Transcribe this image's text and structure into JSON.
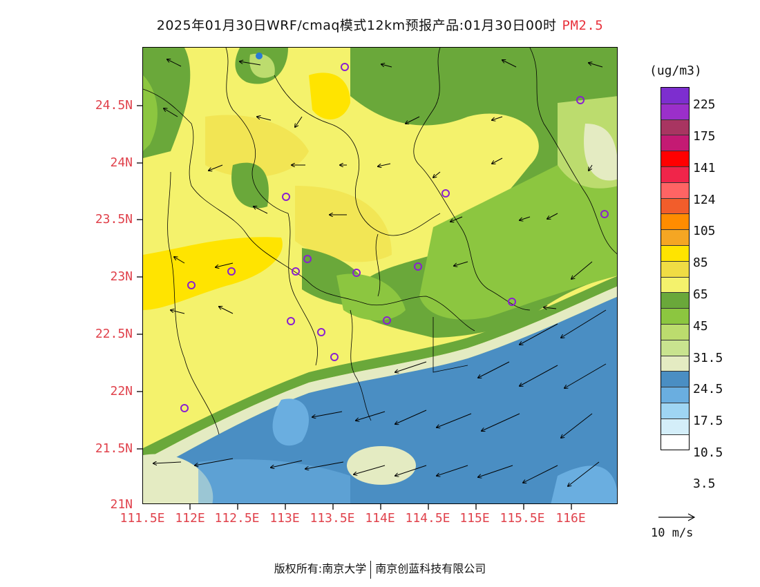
{
  "title": {
    "main": "2025年01月30日WRF/cmaq模式12km预报产品:01月30日00时",
    "pollutant": "PM2.5"
  },
  "axes": {
    "y_ticks": [
      "24.5N",
      "24N",
      "23.5N",
      "23N",
      "22.5N",
      "22N",
      "21.5N",
      "21N"
    ],
    "x_ticks": [
      "111.5E",
      "112E",
      "112.5E",
      "113E",
      "113.5E",
      "114E",
      "114.5E",
      "115E",
      "115.5E",
      "116E"
    ]
  },
  "legend": {
    "unit": "(ug/m3)",
    "labels": [
      "225",
      "175",
      "141",
      "124",
      "105",
      "85",
      "65",
      "45",
      "31.5",
      "24.5",
      "17.5",
      "10.5",
      "3.5"
    ],
    "colors": [
      "#7d2ecf",
      "#9b2fca",
      "#a83561",
      "#c41a73",
      "#ff0000",
      "#f0254a",
      "#ff6464",
      "#f25d2b",
      "#ff8c00",
      "#f5a623",
      "#ffe400",
      "#f0dc44",
      "#f4f26c",
      "#6aa83a",
      "#8cc640",
      "#bcdc6e",
      "#c9e38f",
      "#e4ebc2",
      "#4a8ec3",
      "#6aaee0",
      "#9fd5f3",
      "#d4eef9",
      "#ffffff"
    ],
    "vector_unit": "10 m/s"
  },
  "footer": {
    "copyright_label": "版权所有:",
    "org1": "南京大学",
    "org2": "南京创蓝科技有限公司"
  }
}
